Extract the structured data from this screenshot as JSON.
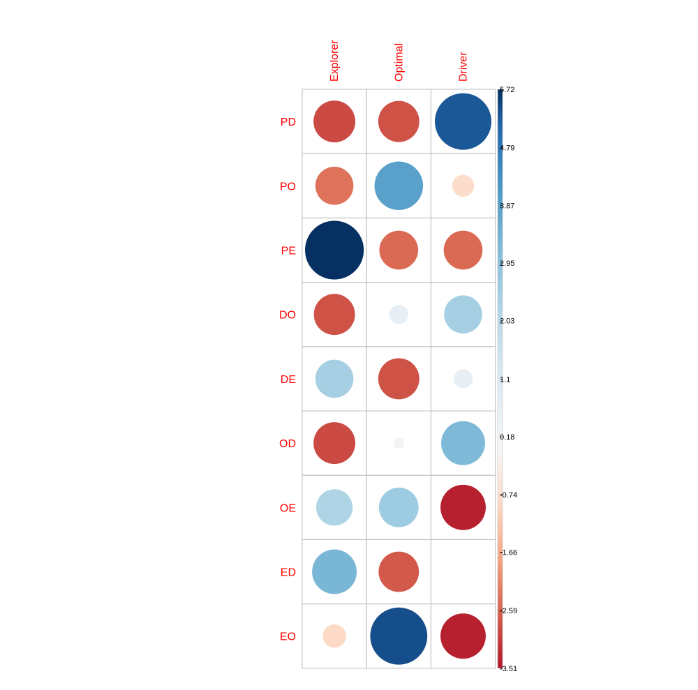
{
  "chart_data": {
    "type": "heatmap",
    "subtype": "correlation-circle-matrix",
    "columns": [
      "Explorer",
      "Optimal",
      "Driver"
    ],
    "rows": [
      "PD",
      "PO",
      "PE",
      "DO",
      "DE",
      "OD",
      "OE",
      "ED",
      "EO"
    ],
    "values": [
      [
        -2.9,
        -2.8,
        5.3
      ],
      [
        -2.4,
        3.9,
        -0.8
      ],
      [
        5.72,
        -2.5,
        -2.5
      ],
      [
        -2.8,
        0.6,
        2.4
      ],
      [
        2.4,
        -2.8,
        0.6
      ],
      [
        -2.9,
        0.2,
        3.2
      ],
      [
        2.2,
        2.6,
        -3.4
      ],
      [
        3.3,
        -2.7,
        0.0
      ],
      [
        -0.9,
        5.4,
        -3.4
      ]
    ],
    "colorbar": {
      "min": -3.51,
      "max": 5.72,
      "tick_labels": [
        "5.72",
        "4.79",
        "3.87",
        "2.95",
        "2.03",
        "1.1",
        "0.18",
        "-0.74",
        "-1.66",
        "-2.59",
        "-3.51"
      ],
      "tick_values": [
        5.72,
        4.79,
        3.87,
        2.95,
        2.03,
        1.1,
        0.18,
        -0.74,
        -1.66,
        -2.59,
        -3.51
      ],
      "placement": "right"
    },
    "colors": {
      "label": "#ff0000",
      "grid": "#bebebe",
      "neg_strong": "#c2413f",
      "neg_mid": "#e7805f",
      "neg_light": "#fbdcc9",
      "neutral": "#f7f7f7",
      "pos_light": "#dbe9f2",
      "pos_mid": "#87bad8",
      "pos_strong_1": "#2e76b4",
      "pos_strong_2": "#12407d",
      "pos_max": "#09234c"
    }
  }
}
